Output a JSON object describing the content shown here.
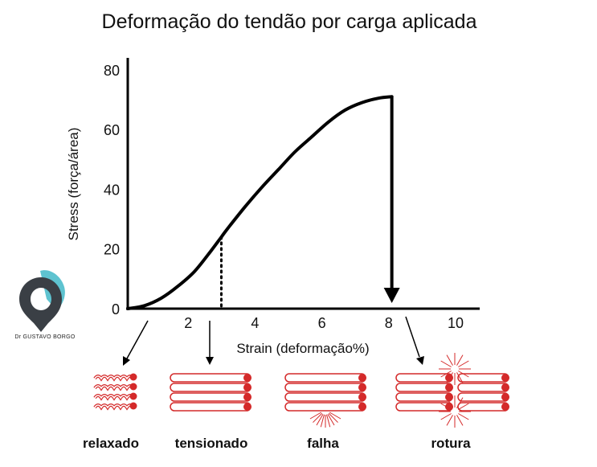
{
  "chart_data": {
    "type": "line",
    "title": "Deformação do tendão por carga aplicada",
    "xlabel": "Strain (deformação%)",
    "ylabel": "Stress (força/área)",
    "xlim": [
      0,
      10.4
    ],
    "ylim": [
      0,
      84
    ],
    "x_ticks": [
      2,
      4,
      6,
      8,
      10
    ],
    "y_ticks": [
      0,
      20,
      40,
      60,
      80
    ],
    "grid": false,
    "series": [
      {
        "x": [
          0,
          0.5,
          1.0,
          1.5,
          2.0,
          2.5,
          2.8,
          3.0,
          3.5,
          4.0,
          4.5,
          5.0,
          5.5,
          6.0,
          6.5,
          7.0,
          7.5,
          7.9
        ],
        "y": [
          0,
          1,
          3.5,
          7.5,
          12.5,
          19.5,
          24,
          27,
          34,
          40.5,
          46.5,
          52.5,
          57.5,
          62.5,
          66.5,
          69,
          70.5,
          71
        ]
      }
    ],
    "annotations": {
      "toe_region_end_x": 2.8,
      "failure_x": 7.9
    }
  },
  "fiber_states": [
    {
      "label": "relaxado",
      "style": "wavy"
    },
    {
      "label": "tensionado",
      "style": "straight"
    },
    {
      "label": "falha",
      "style": "partial-tear"
    },
    {
      "label": "rotura",
      "style": "rupture"
    }
  ],
  "logo": {
    "text": "Dr GUSTAVO BORGO",
    "colors": {
      "teal": "#5ec3d0",
      "dark": "#3a3f45"
    }
  },
  "colors": {
    "fiber": "#d42a2a",
    "line": "#000000"
  }
}
